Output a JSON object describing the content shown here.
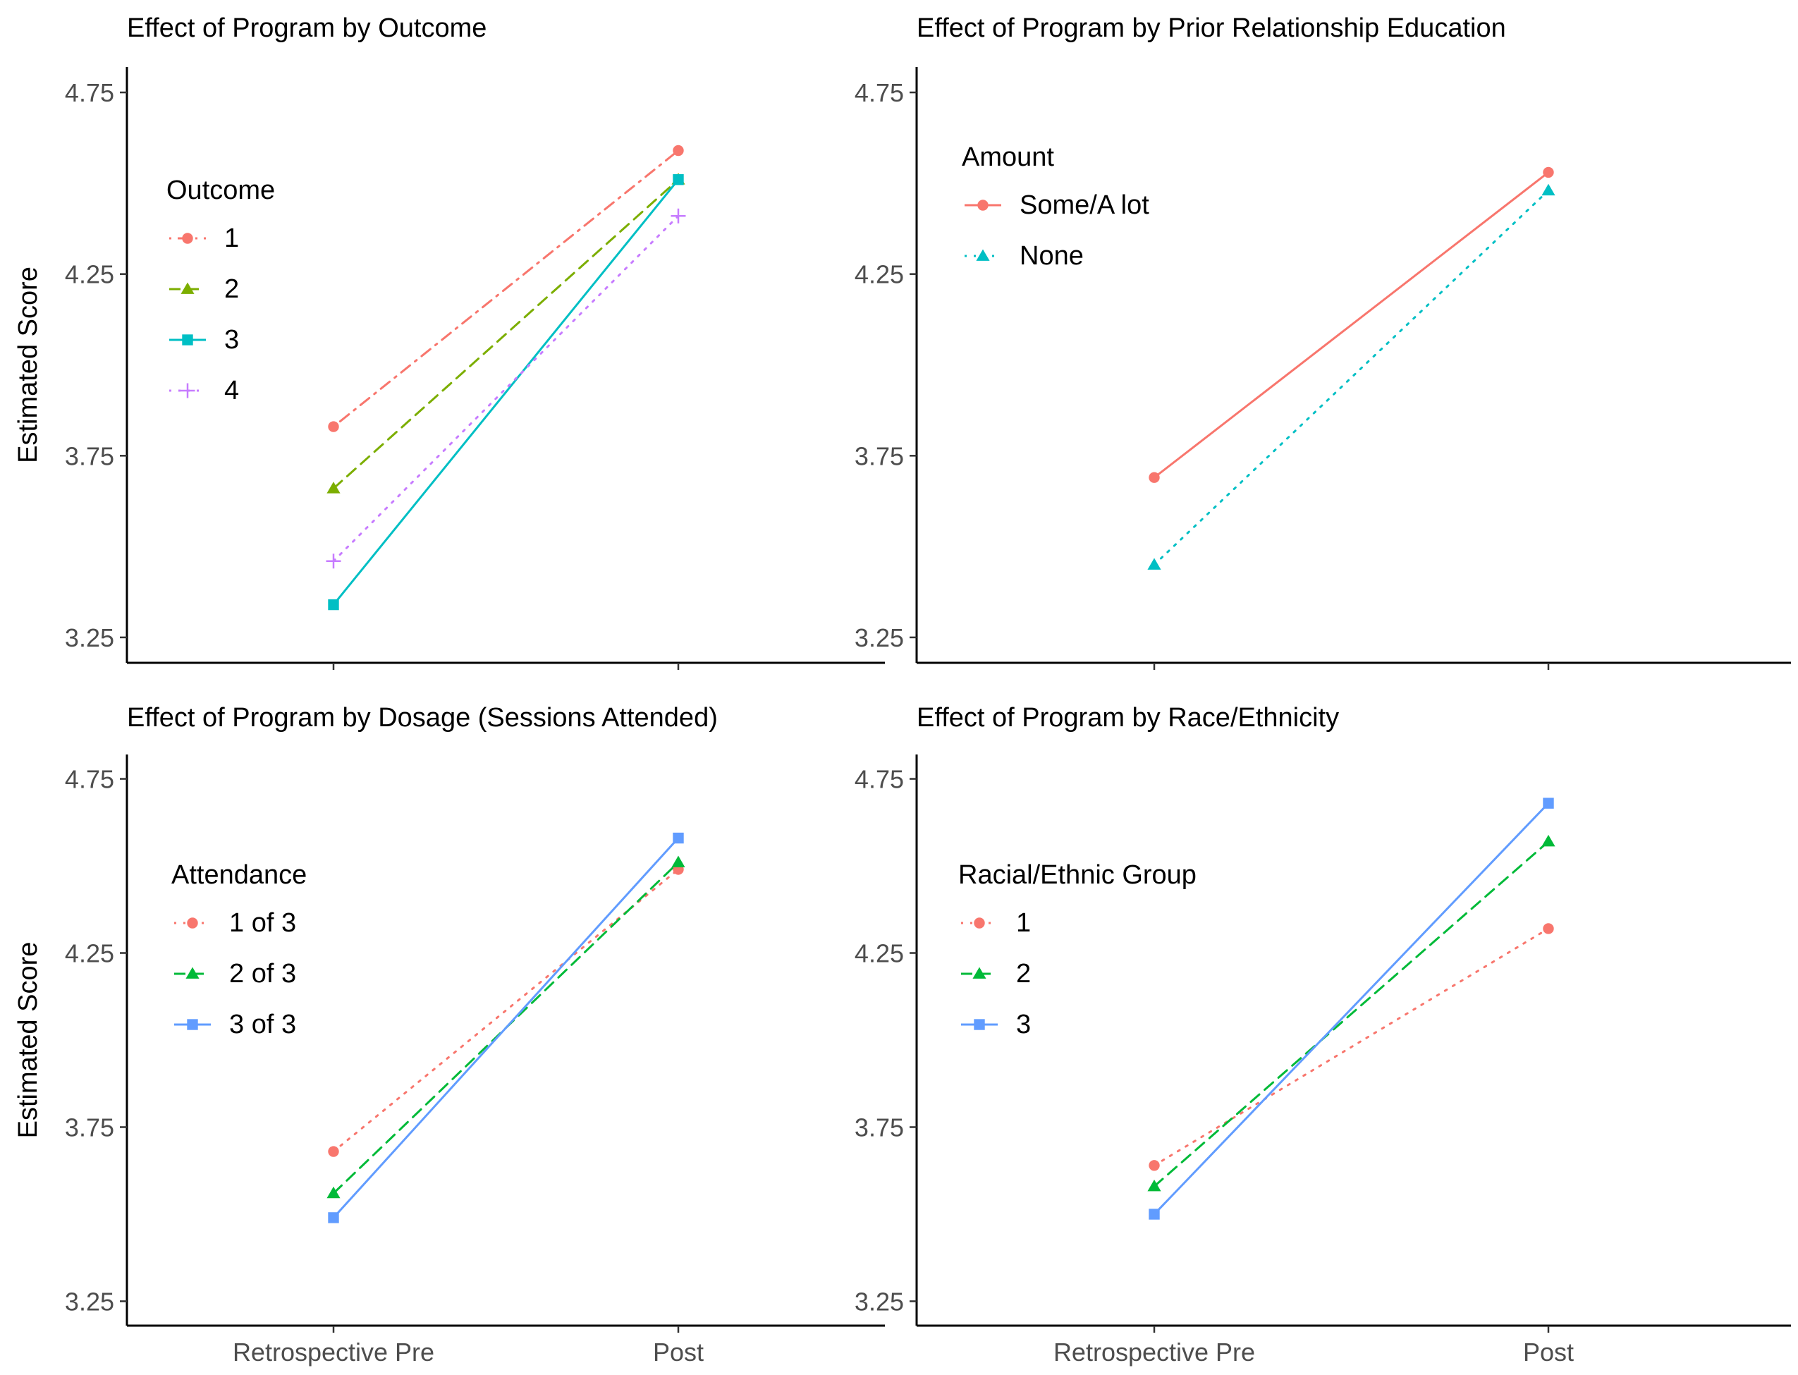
{
  "figure": {
    "y_axis_title": "Estimated Score",
    "x_ticks": [
      "Retrospective Pre",
      "Post"
    ],
    "y_ticks": [
      "3.25",
      "3.75",
      "4.25",
      "4.75"
    ]
  },
  "chart_data": [
    {
      "type": "line",
      "title": "Effect of Program by Outcome",
      "xlabel": "",
      "ylabel": "Estimated Score",
      "ylim": [
        3.18,
        4.82
      ],
      "categories": [
        "Retrospective Pre",
        "Post"
      ],
      "legend_title": "Outcome",
      "legend_position": "top-left",
      "series": [
        {
          "name": "1",
          "values": [
            3.83,
            4.59
          ],
          "color": "#F8766D",
          "dash": "dotdash",
          "marker": "circle"
        },
        {
          "name": "2",
          "values": [
            3.66,
            4.51
          ],
          "color": "#7CAE00",
          "dash": "dashed",
          "marker": "triangle"
        },
        {
          "name": "3",
          "values": [
            3.34,
            4.51
          ],
          "color": "#00BFC4",
          "dash": "solid",
          "marker": "square"
        },
        {
          "name": "4",
          "values": [
            3.46,
            4.41
          ],
          "color": "#C77CFF",
          "dash": "dotted",
          "marker": "plus"
        }
      ]
    },
    {
      "type": "line",
      "title": "Effect of Program by Prior Relationship Education",
      "xlabel": "",
      "ylabel": "",
      "ylim": [
        3.18,
        4.82
      ],
      "categories": [
        "Retrospective Pre",
        "Post"
      ],
      "legend_title": "Amount",
      "legend_position": "top-left",
      "series": [
        {
          "name": "Some/A lot",
          "values": [
            3.69,
            4.53
          ],
          "color": "#F8766D",
          "dash": "solid",
          "marker": "circle"
        },
        {
          "name": "None",
          "values": [
            3.45,
            4.48
          ],
          "color": "#00BFC4",
          "dash": "dotted",
          "marker": "triangle"
        }
      ]
    },
    {
      "type": "line",
      "title": "Effect of Program by Dosage (Sessions Attended)",
      "xlabel": "",
      "ylabel": "Estimated Score",
      "ylim": [
        3.18,
        4.82
      ],
      "categories": [
        "Retrospective Pre",
        "Post"
      ],
      "legend_title": "Attendance",
      "legend_position": "top-left",
      "series": [
        {
          "name": "1 of 3",
          "values": [
            3.68,
            4.49
          ],
          "color": "#F8766D",
          "dash": "dotted",
          "marker": "circle"
        },
        {
          "name": "2 of 3",
          "values": [
            3.56,
            4.51
          ],
          "color": "#00BA38",
          "dash": "dashed",
          "marker": "triangle"
        },
        {
          "name": "3 of 3",
          "values": [
            3.49,
            4.58
          ],
          "color": "#619CFF",
          "dash": "solid",
          "marker": "square"
        }
      ]
    },
    {
      "type": "line",
      "title": "Effect of Program by Race/Ethnicity",
      "xlabel": "",
      "ylabel": "",
      "ylim": [
        3.18,
        4.82
      ],
      "categories": [
        "Retrospective Pre",
        "Post"
      ],
      "legend_title": "Racial/Ethnic Group",
      "legend_position": "top-left",
      "series": [
        {
          "name": "1",
          "values": [
            3.64,
            4.32
          ],
          "color": "#F8766D",
          "dash": "dotted",
          "marker": "circle"
        },
        {
          "name": "2",
          "values": [
            3.58,
            4.57
          ],
          "color": "#00BA38",
          "dash": "dashed",
          "marker": "triangle"
        },
        {
          "name": "3",
          "values": [
            3.5,
            4.68
          ],
          "color": "#619CFF",
          "dash": "solid",
          "marker": "square"
        }
      ]
    }
  ]
}
